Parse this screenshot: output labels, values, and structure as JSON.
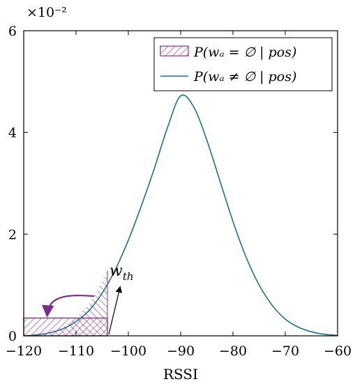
{
  "chart_data": {
    "type": "line",
    "xlabel": "RSSI",
    "ylabel": "",
    "title": "",
    "xlim": [
      -120,
      -60
    ],
    "ylim": [
      0,
      6
    ],
    "y_scale_label": "×10⁻²",
    "x_ticks": [
      "−120",
      "−110",
      "−100",
      "−90",
      "−80",
      "−70",
      "−60"
    ],
    "y_ticks": [
      "0",
      "2",
      "4",
      "6"
    ],
    "legend_position": "top-right",
    "legend": [
      "P(wₐ = ∅ | pos)",
      "P(wₐ ≠ ∅ | pos)"
    ],
    "series": [
      {
        "name": "P(wₐ ≠ ∅ | pos)",
        "style": "line",
        "color": "#1f6f8b",
        "x": [
          -120,
          -117.5,
          -115,
          -112.5,
          -110,
          -107.5,
          -105,
          -102.5,
          -100,
          -97.5,
          -95,
          -92.5,
          -90,
          -87.5,
          -85,
          -82.5,
          -80,
          -77.5,
          -75,
          -72.5,
          -70,
          -67.5,
          -65,
          -62.5,
          -60
        ],
        "y": [
          0.0,
          0.02,
          0.06,
          0.14,
          0.28,
          0.5,
          0.84,
          1.3,
          1.88,
          2.56,
          3.3,
          4.1,
          4.72,
          4.5,
          3.85,
          3.05,
          2.25,
          1.55,
          1.0,
          0.6,
          0.33,
          0.17,
          0.08,
          0.03,
          0.01
        ]
      },
      {
        "name": "P(wₐ = ∅ | pos)",
        "style": "crosshatch-bar",
        "color": "#8b2e8b",
        "x_range": [
          -120,
          -104
        ],
        "height": 0.35
      }
    ],
    "shaded_region": {
      "name": "tail-below-threshold",
      "style": "hatch",
      "color": "#8b2e8b",
      "x_range": [
        -120,
        -104
      ]
    },
    "annotations": [
      {
        "text": "w_th",
        "label_main": "w",
        "label_sub": "th",
        "x": -104,
        "y": 0.85
      }
    ]
  }
}
